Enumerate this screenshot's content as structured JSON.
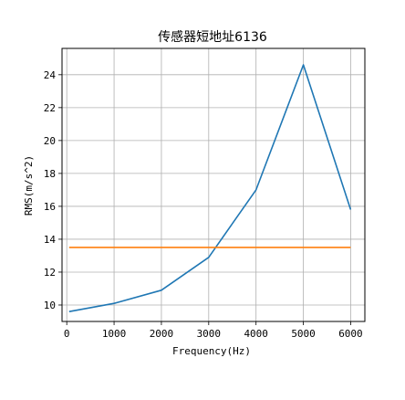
{
  "chart_data": {
    "type": "line",
    "title": "传感器短地址6136",
    "xlabel": "Frequency(Hz)",
    "ylabel": "RMS(m/s^2)",
    "xlim": [
      -100,
      6300
    ],
    "ylim": [
      9.0,
      25.6
    ],
    "xticks": [
      0,
      1000,
      2000,
      3000,
      4000,
      5000,
      6000
    ],
    "yticks": [
      10,
      12,
      14,
      16,
      18,
      20,
      22,
      24
    ],
    "grid": true,
    "series": [
      {
        "color": "#1f77b4",
        "x": [
          50,
          1000,
          2000,
          3000,
          4000,
          5000,
          6000
        ],
        "y": [
          9.6,
          10.1,
          10.9,
          12.9,
          17.0,
          24.6,
          15.8
        ]
      },
      {
        "color": "#ff7f0e",
        "x": [
          50,
          6000
        ],
        "y": [
          13.5,
          13.5
        ]
      }
    ]
  }
}
